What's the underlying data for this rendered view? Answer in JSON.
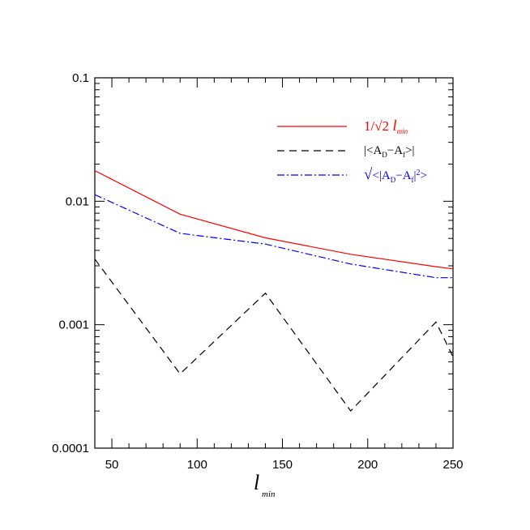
{
  "chart_data": {
    "type": "line",
    "title": "",
    "xlabel": "l",
    "xlabel_sub": "min",
    "ylabel": "",
    "xlim": [
      40,
      250
    ],
    "ylim": [
      0.0001,
      0.1
    ],
    "yscale": "log",
    "x_ticks": [
      50,
      100,
      150,
      200,
      250
    ],
    "x_tick_labels": [
      "50",
      "100",
      "150",
      "200",
      "250"
    ],
    "y_ticks": [
      0.0001,
      0.001,
      0.01,
      0.1
    ],
    "y_tick_labels": [
      "0.0001",
      "0.001",
      "0.01",
      "0.1"
    ],
    "grid": false,
    "legend_position": "top-right",
    "series": [
      {
        "name": "1/√2 l_min",
        "color": "#ff0000",
        "dash": "solid",
        "x": [
          40,
          90,
          140,
          190,
          240,
          250
        ],
        "y": [
          0.0177,
          0.00786,
          0.00505,
          0.00372,
          0.00295,
          0.00283
        ]
      },
      {
        "name": "|<A_D − A_f>|",
        "color": "#000000",
        "dash": "dashed",
        "x": [
          40,
          90,
          140,
          190,
          240,
          250
        ],
        "y": [
          0.0034,
          0.0004,
          0.0018,
          0.0002,
          0.00105,
          0.00055
        ]
      },
      {
        "name": "√<|A_D − A_f|²>",
        "color": "#0000ff",
        "dash": "dashdot",
        "x": [
          40,
          90,
          140,
          190,
          240,
          250
        ],
        "y": [
          0.0113,
          0.0055,
          0.0045,
          0.0031,
          0.0024,
          0.0024
        ]
      }
    ]
  }
}
